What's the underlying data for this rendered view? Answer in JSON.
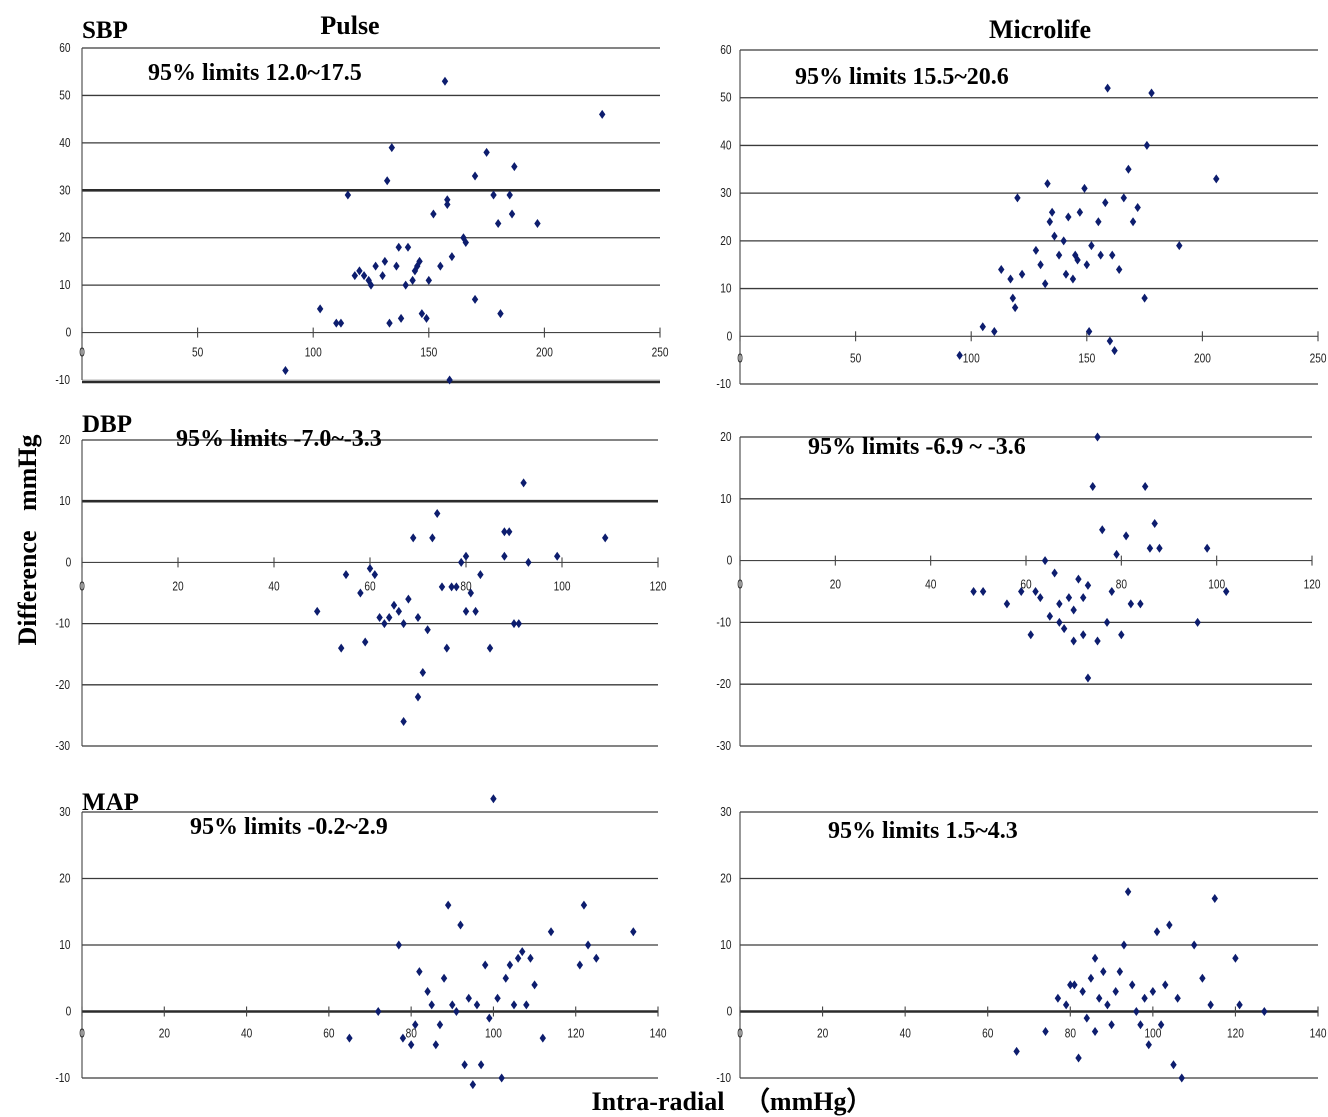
{
  "figure": {
    "col_titles": [
      "Pulse",
      "Microlife"
    ],
    "ylabel": "Difference   mmHg",
    "xlabel": "Intra-radial   （mmHg）",
    "marker_color": "#0d1d6e"
  },
  "chart_data": [
    {
      "type": "scatter",
      "row_label": "SBP",
      "annotation": "95% limits 12.0~17.5",
      "xlim": [
        0,
        250
      ],
      "ylim": [
        -10,
        60
      ],
      "xticks": [
        "0",
        "50",
        "100",
        "150",
        "200",
        "250"
      ],
      "yticks": [
        "-10",
        "0",
        "10",
        "20",
        "30",
        "40",
        "50",
        "60"
      ],
      "x": [
        88,
        103,
        110,
        112,
        115,
        118,
        120,
        122,
        124,
        125,
        127,
        130,
        131,
        132,
        133,
        134,
        136,
        137,
        138,
        140,
        141,
        143,
        144,
        145,
        146,
        147,
        149,
        150,
        152,
        155,
        157,
        158,
        158,
        159,
        160,
        165,
        166,
        170,
        170,
        175,
        178,
        180,
        181,
        185,
        186,
        187,
        197,
        225
      ],
      "y": [
        -8,
        5,
        2,
        2,
        29,
        12,
        13,
        12,
        11,
        10,
        14,
        12,
        15,
        32,
        2,
        39,
        14,
        18,
        3,
        10,
        18,
        11,
        13,
        14,
        15,
        4,
        3,
        11,
        25,
        14,
        53,
        27,
        28,
        -10,
        16,
        20,
        19,
        7,
        33,
        38,
        29,
        23,
        4,
        29,
        25,
        35,
        23,
        46
      ]
    },
    {
      "type": "scatter",
      "row_label": "",
      "annotation": "95% limits 15.5~20.6",
      "xlim": [
        0,
        250
      ],
      "ylim": [
        -10,
        60
      ],
      "xticks": [
        "0",
        "50",
        "100",
        "150",
        "200",
        "250"
      ],
      "yticks": [
        "-10",
        "0",
        "10",
        "20",
        "30",
        "40",
        "50",
        "60"
      ],
      "x": [
        95,
        105,
        110,
        113,
        117,
        118,
        119,
        120,
        122,
        128,
        130,
        132,
        133,
        134,
        135,
        136,
        138,
        140,
        141,
        142,
        144,
        145,
        146,
        147,
        149,
        150,
        151,
        152,
        155,
        156,
        158,
        159,
        160,
        161,
        162,
        164,
        166,
        168,
        170,
        172,
        175,
        176,
        178,
        190,
        206
      ],
      "y": [
        -4,
        2,
        1,
        14,
        12,
        8,
        6,
        29,
        13,
        18,
        15,
        11,
        32,
        24,
        26,
        21,
        17,
        20,
        13,
        25,
        12,
        17,
        16,
        26,
        31,
        15,
        1,
        19,
        24,
        17,
        28,
        52,
        -1,
        17,
        -3,
        14,
        29,
        35,
        24,
        27,
        8,
        40,
        51,
        19,
        33
      ]
    },
    {
      "type": "scatter",
      "row_label": "DBP",
      "annotation": "95% limits  -7.0~-3.3",
      "xlim": [
        0,
        120
      ],
      "ylim": [
        -30,
        20
      ],
      "xticks": [
        "0",
        "20",
        "40",
        "60",
        "80",
        "100",
        "120"
      ],
      "yticks": [
        "-30",
        "-20",
        "-10",
        "0",
        "10",
        "20"
      ],
      "x": [
        49,
        54,
        55,
        58,
        59,
        60,
        61,
        62,
        63,
        64,
        65,
        66,
        67,
        67,
        68,
        69,
        70,
        70,
        71,
        72,
        73,
        74,
        75,
        76,
        77,
        78,
        79,
        80,
        80,
        81,
        82,
        83,
        85,
        88,
        88,
        89,
        90,
        91,
        92,
        93,
        99,
        109
      ],
      "y": [
        -8,
        -14,
        -2,
        -5,
        -13,
        -1,
        -2,
        -9,
        -10,
        -9,
        -7,
        -8,
        -10,
        -26,
        -6,
        4,
        -9,
        -22,
        -18,
        -11,
        4,
        8,
        -4,
        -14,
        -4,
        -4,
        0,
        -8,
        1,
        -5,
        -8,
        -2,
        -14,
        1,
        5,
        5,
        -10,
        -10,
        13,
        0,
        1,
        4
      ]
    },
    {
      "type": "scatter",
      "row_label": "",
      "annotation": "95% limits -6.9 ~ -3.6",
      "xlim": [
        0,
        120
      ],
      "ylim": [
        -30,
        20
      ],
      "xticks": [
        "0",
        "20",
        "40",
        "60",
        "80",
        "100",
        "120"
      ],
      "yticks": [
        "-30",
        "-20",
        "-10",
        "0",
        "10",
        "20"
      ],
      "x": [
        49,
        51,
        56,
        59,
        61,
        62,
        63,
        64,
        65,
        66,
        67,
        67,
        68,
        69,
        70,
        70,
        71,
        72,
        72,
        73,
        73,
        74,
        75,
        75,
        76,
        77,
        78,
        79,
        80,
        81,
        82,
        84,
        85,
        86,
        87,
        88,
        96,
        98,
        102
      ],
      "y": [
        -5,
        -5,
        -7,
        -5,
        -12,
        -5,
        -6,
        0,
        -9,
        -2,
        -10,
        -7,
        -11,
        -6,
        -13,
        -8,
        -3,
        -6,
        -12,
        -4,
        -19,
        12,
        20,
        -13,
        5,
        -10,
        -5,
        1,
        -12,
        4,
        -7,
        -7,
        12,
        2,
        6,
        2,
        -10,
        2,
        -5
      ]
    },
    {
      "type": "scatter",
      "row_label": "MAP",
      "annotation": "95% limits  -0.2~2.9",
      "xlim": [
        0,
        140
      ],
      "ylim": [
        -10,
        30
      ],
      "xticks": [
        "0",
        "20",
        "40",
        "60",
        "80",
        "100",
        "120",
        "140"
      ],
      "yticks": [
        "-10",
        "0",
        "10",
        "20",
        "30"
      ],
      "x": [
        65,
        72,
        77,
        78,
        80,
        81,
        82,
        84,
        85,
        86,
        87,
        88,
        89,
        90,
        91,
        92,
        93,
        94,
        95,
        96,
        97,
        98,
        99,
        100,
        101,
        102,
        103,
        104,
        105,
        106,
        107,
        108,
        109,
        110,
        112,
        114,
        121,
        122,
        123,
        125,
        134
      ],
      "y": [
        -4,
        0,
        10,
        -4,
        -5,
        -2,
        6,
        3,
        1,
        -5,
        -2,
        5,
        16,
        1,
        0,
        13,
        -8,
        2,
        -11,
        1,
        -8,
        7,
        -1,
        32,
        2,
        -10,
        5,
        7,
        1,
        8,
        9,
        1,
        8,
        4,
        -4,
        12,
        7,
        16,
        10,
        8,
        12
      ]
    },
    {
      "type": "scatter",
      "row_label": "",
      "annotation": "95% limits 1.5~4.3",
      "xlim": [
        0,
        140
      ],
      "ylim": [
        -10,
        30
      ],
      "xticks": [
        "0",
        "20",
        "40",
        "60",
        "80",
        "100",
        "120",
        "140"
      ],
      "yticks": [
        "-10",
        "0",
        "10",
        "20",
        "30"
      ],
      "x": [
        67,
        74,
        77,
        79,
        80,
        81,
        82,
        83,
        84,
        85,
        86,
        86,
        87,
        88,
        89,
        90,
        91,
        92,
        93,
        94,
        95,
        96,
        97,
        98,
        99,
        100,
        101,
        102,
        103,
        104,
        105,
        106,
        107,
        110,
        112,
        114,
        115,
        120,
        121,
        127
      ],
      "y": [
        -6,
        -3,
        2,
        1,
        4,
        4,
        -7,
        3,
        -1,
        5,
        -3,
        8,
        2,
        6,
        1,
        -2,
        3,
        6,
        10,
        18,
        4,
        0,
        -2,
        2,
        -5,
        3,
        12,
        -2,
        4,
        13,
        -8,
        2,
        -10,
        10,
        5,
        1,
        17,
        8,
        1,
        0
      ]
    }
  ]
}
